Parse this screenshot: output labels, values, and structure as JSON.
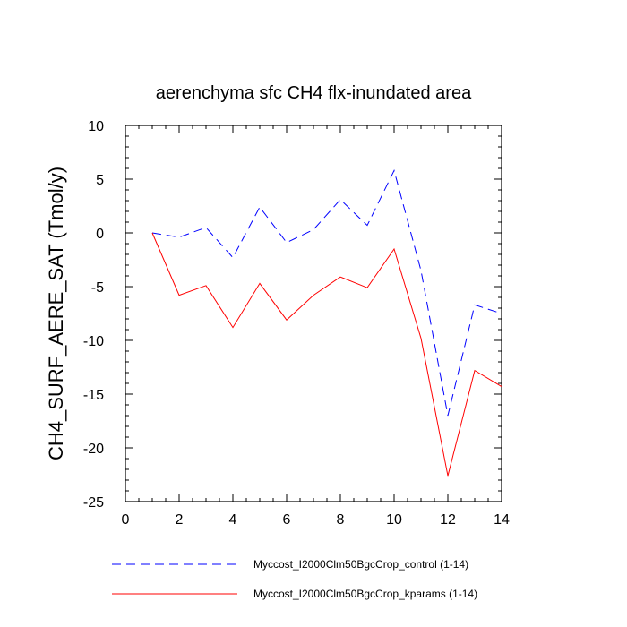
{
  "chart_data": {
    "type": "line",
    "title": "aerenchyma sfc CH4 flx-inundated area",
    "xlabel": "",
    "ylabel": "CH4_SURF_AERE_SAT  (Tmol/y)",
    "xlim": [
      0,
      14
    ],
    "ylim": [
      -25,
      10
    ],
    "x_ticks": [
      0,
      2,
      4,
      6,
      8,
      10,
      12,
      14
    ],
    "y_ticks": [
      -25,
      -20,
      -15,
      -10,
      -5,
      0,
      5,
      10
    ],
    "grid": false,
    "legend_position": "bottom",
    "series": [
      {
        "name": "Myccost_I2000Clm50BgcCrop_control (1-14)",
        "color": "#0000ff",
        "style": "dashed",
        "x": [
          1,
          2,
          3,
          4,
          5,
          6,
          7,
          8,
          9,
          10,
          11,
          12,
          13,
          14
        ],
        "values": [
          0.0,
          -0.4,
          0.5,
          -2.3,
          2.4,
          -0.9,
          0.3,
          3.1,
          0.7,
          5.8,
          -3.5,
          -17.0,
          -6.7,
          -7.5
        ]
      },
      {
        "name": "Myccost_I2000Clm50BgcCrop_kparams (1-14)",
        "color": "#ff0000",
        "style": "solid",
        "x": [
          1,
          2,
          3,
          4,
          5,
          6,
          7,
          8,
          9,
          10,
          11,
          12,
          13,
          14
        ],
        "values": [
          0.0,
          -5.8,
          -4.9,
          -8.8,
          -4.7,
          -8.1,
          -5.8,
          -4.1,
          -5.1,
          -1.5,
          -9.8,
          -22.6,
          -12.8,
          -14.3
        ]
      }
    ]
  }
}
